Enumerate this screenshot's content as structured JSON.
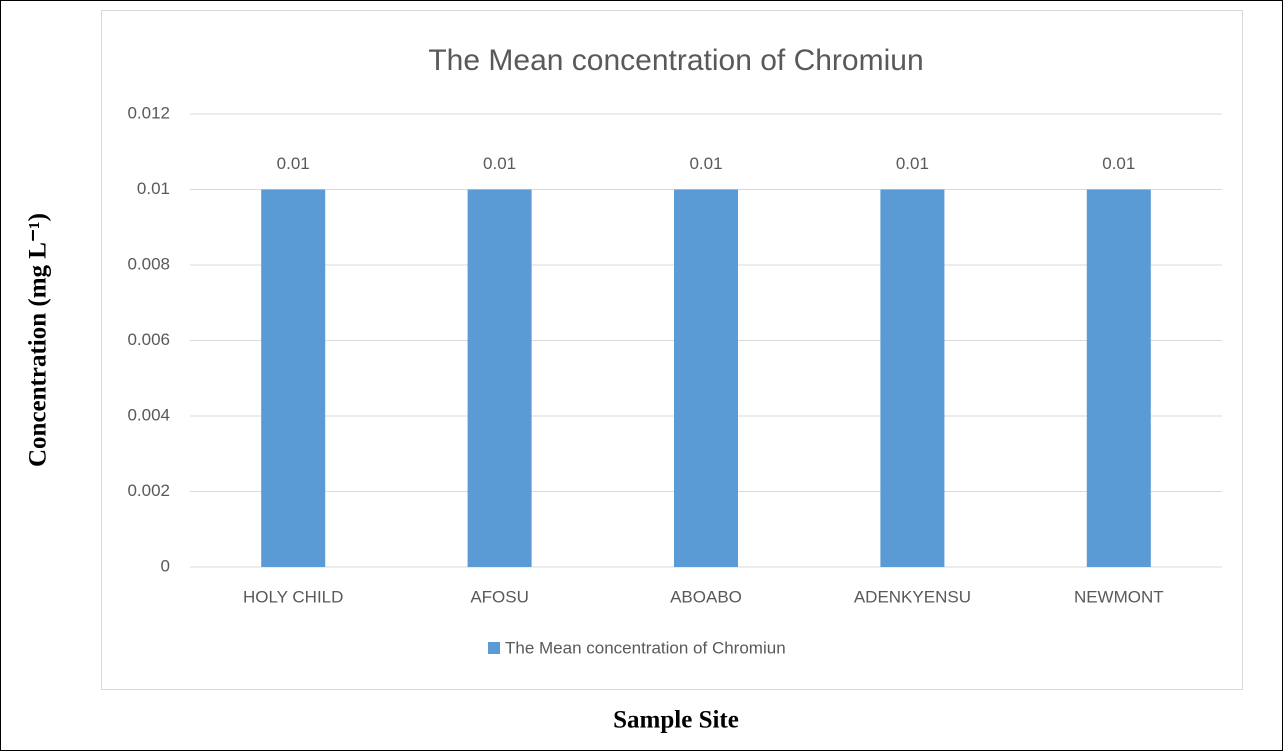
{
  "chart_data": {
    "type": "bar",
    "title": "The Mean concentration of Chromiun",
    "categories": [
      "HOLY CHILD",
      "AFOSU",
      "ABOABO",
      "ADENKYENSU",
      "NEWMONT"
    ],
    "series": [
      {
        "name": "The Mean concentration of Chromiun",
        "color": "#5b9bd5",
        "values": [
          0.01,
          0.01,
          0.01,
          0.01,
          0.01
        ]
      }
    ],
    "ylim": [
      0,
      0.012
    ],
    "yticks": [
      0,
      0.002,
      0.004,
      0.006,
      0.008,
      0.01,
      0.012
    ],
    "grid": true,
    "ylabel": "Concentration (mg L⁻¹)",
    "xlabel": "Sample Site",
    "legend": "bottom"
  }
}
